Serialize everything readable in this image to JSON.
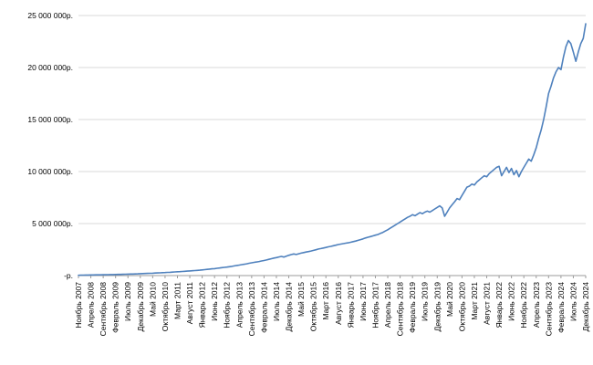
{
  "chart_data": {
    "type": "line",
    "title": "",
    "xlabel": "",
    "ylabel": "",
    "legend": "none",
    "grid": true,
    "line_color": "#4f81bd",
    "grid_color": "#d9d9d9",
    "axis_color": "#9b9b9b",
    "ylim": [
      0,
      25000000
    ],
    "y_ticks": [
      0,
      5000000,
      10000000,
      15000000,
      20000000,
      25000000
    ],
    "y_tick_labels": [
      "-р.",
      "5 000 000р.",
      "10 000 000р.",
      "15 000 000р.",
      "20 000 000р.",
      "25 000 000р."
    ],
    "tick_interval_months": 5,
    "x_tick_labels": [
      "Ноябрь 2007",
      "Апрель 2008",
      "Сентябрь 2008",
      "Февраль 2009",
      "Июль 2009",
      "Декабрь 2009",
      "Май 2010",
      "Октябрь 2010",
      "Март 2011",
      "Август 2011",
      "Январь 2012",
      "Июнь 2012",
      "Ноябрь 2012",
      "Апрель 2013",
      "Сентябрь 2013",
      "Февраль 2014",
      "Июль 2014",
      "Декабрь 2014",
      "Май 2015",
      "Октябрь 2015",
      "Март 2016",
      "Август 2016",
      "Январь 2017",
      "Июнь 2017",
      "Ноябрь 2017",
      "Апрель 2018",
      "Сентябрь 2018",
      "Февраль 2019",
      "Июль 2019",
      "Декабрь 2019",
      "Май 2020",
      "Октябрь 2020",
      "Март 2021",
      "Август 2021",
      "Январь 2022",
      "Июнь 2022",
      "Ноябрь 2022",
      "Апрель 2023",
      "Сентябрь 2023",
      "Февраль 2024",
      "Июль 2024",
      "Декабрь 2024"
    ],
    "x_start": "Ноябрь 2007",
    "x_end": "Декабрь 2024",
    "values": [
      30000,
      40000,
      45000,
      50000,
      55000,
      58000,
      62000,
      66000,
      70000,
      74000,
      78000,
      82000,
      88000,
      95000,
      100000,
      106000,
      112000,
      118000,
      125000,
      131000,
      138000,
      145000,
      152000,
      160000,
      170000,
      180000,
      190000,
      200000,
      212000,
      222000,
      232000,
      242000,
      254000,
      265000,
      278000,
      292000,
      306000,
      320000,
      335000,
      350000,
      365000,
      380000,
      395000,
      410000,
      428000,
      445000,
      462000,
      480000,
      500000,
      520000,
      545000,
      570000,
      595000,
      620000,
      645000,
      670000,
      700000,
      730000,
      760000,
      790000,
      820000,
      850000,
      890000,
      930000,
      970000,
      1010000,
      1050000,
      1090000,
      1135000,
      1180000,
      1225000,
      1270000,
      1310000,
      1350000,
      1400000,
      1450000,
      1500000,
      1560000,
      1620000,
      1680000,
      1730000,
      1790000,
      1840000,
      1780000,
      1870000,
      1950000,
      2020000,
      2080000,
      2030000,
      2100000,
      2160000,
      2210000,
      2260000,
      2310000,
      2360000,
      2420000,
      2480000,
      2550000,
      2600000,
      2650000,
      2700000,
      2760000,
      2810000,
      2870000,
      2920000,
      2980000,
      3030000,
      3070000,
      3110000,
      3150000,
      3200000,
      3260000,
      3320000,
      3390000,
      3460000,
      3530000,
      3610000,
      3680000,
      3750000,
      3820000,
      3890000,
      3950000,
      4050000,
      4150000,
      4280000,
      4400000,
      4550000,
      4700000,
      4850000,
      5000000,
      5150000,
      5300000,
      5450000,
      5600000,
      5700000,
      5850000,
      5750000,
      5900000,
      6050000,
      5950000,
      6100000,
      6200000,
      6100000,
      6250000,
      6400000,
      6550000,
      6700000,
      6500000,
      5700000,
      6100000,
      6500000,
      6800000,
      7100000,
      7400000,
      7300000,
      7700000,
      8100000,
      8500000,
      8600000,
      8800000,
      8700000,
      9000000,
      9200000,
      9400000,
      9600000,
      9500000,
      9800000,
      10000000,
      10200000,
      10400000,
      10500000,
      9600000,
      10000000,
      10400000,
      9900000,
      10300000,
      9700000,
      10100000,
      9500000,
      10000000,
      10400000,
      10800000,
      11200000,
      11000000,
      11600000,
      12300000,
      13200000,
      14000000,
      15000000,
      16200000,
      17500000,
      18200000,
      19000000,
      19600000,
      20000000,
      19800000,
      21000000,
      22000000,
      22600000,
      22300000,
      21500000,
      20600000,
      21500000,
      22300000,
      22800000,
      24200000
    ]
  }
}
